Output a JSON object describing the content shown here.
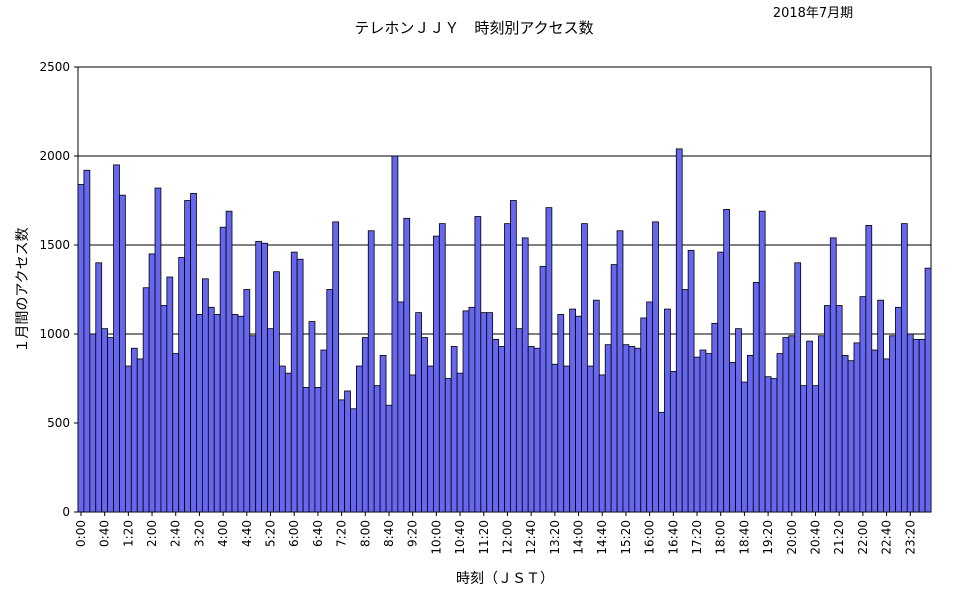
{
  "page": {
    "title": "テレホンＪＪＹ　時刻別アクセス数",
    "period_label": "2018年7月期"
  },
  "chart_data": {
    "type": "bar",
    "title": "テレホンＪＪＹ　時刻別アクセス数",
    "xlabel": "時刻（ＪＳＴ）",
    "ylabel": "１月間のアクセス数",
    "ylim": [
      0,
      2500
    ],
    "yticks": [
      0,
      500,
      1000,
      1500,
      2000,
      2500
    ],
    "grid": true,
    "bar_color": "#6666ee",
    "bar_stroke": "#000000",
    "x_tick_labels": [
      "0:00",
      "0:40",
      "1:20",
      "2:00",
      "2:40",
      "3:20",
      "4:00",
      "4:40",
      "5:20",
      "6:00",
      "6:40",
      "7:20",
      "8:00",
      "8:40",
      "9:20",
      "10:00",
      "10:40",
      "11:20",
      "12:00",
      "12:40",
      "13:20",
      "14:00",
      "14:40",
      "15:20",
      "16:00",
      "16:40",
      "17:20",
      "18:00",
      "18:40",
      "19:20",
      "20:00",
      "20:40",
      "21:20",
      "22:00",
      "22:40",
      "23:20"
    ],
    "interval_minutes": 10,
    "values": [
      1840,
      1920,
      1000,
      1400,
      1030,
      980,
      1950,
      1780,
      820,
      920,
      860,
      1260,
      1450,
      1820,
      1160,
      1320,
      890,
      1430,
      1750,
      1790,
      1110,
      1310,
      1150,
      1110,
      1600,
      1690,
      1110,
      1100,
      1250,
      990,
      1520,
      1510,
      1030,
      1350,
      820,
      780,
      1460,
      1420,
      700,
      1070,
      700,
      910,
      1250,
      1630,
      630,
      680,
      580,
      820,
      980,
      1580,
      710,
      880,
      600,
      2000,
      1180,
      1650,
      770,
      1120,
      980,
      820,
      1550,
      1620,
      750,
      930,
      780,
      1130,
      1150,
      1660,
      1120,
      1120,
      970,
      930,
      1620,
      1750,
      1030,
      1540,
      930,
      920,
      1380,
      1710,
      830,
      1110,
      820,
      1140,
      1100,
      1620,
      820,
      1190,
      770,
      940,
      1390,
      1580,
      940,
      930,
      920,
      1090,
      1180,
      1630,
      560,
      1140,
      790,
      2040,
      1250,
      1470,
      870,
      910,
      890,
      1060,
      1460,
      1700,
      840,
      1030,
      730,
      880,
      1290,
      1690,
      760,
      750,
      890,
      980,
      990,
      1400,
      710,
      960,
      710,
      990,
      1160,
      1540,
      1160,
      880,
      850,
      950,
      1210,
      1610,
      910,
      1190,
      860,
      990,
      1150,
      1620,
      1000,
      970,
      970,
      1370
    ]
  }
}
